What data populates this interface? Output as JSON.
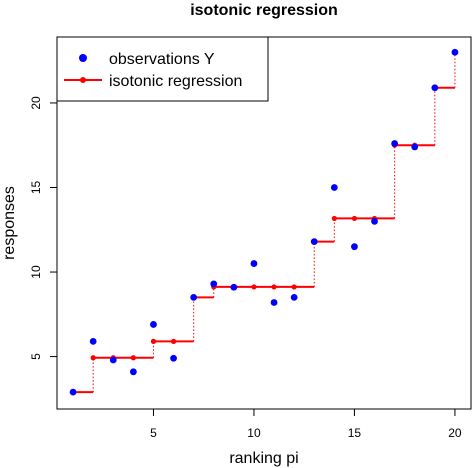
{
  "chart_data": {
    "type": "scatter",
    "title": "isotonic regression",
    "xlabel": "ranking pi",
    "ylabel": "responses",
    "xlim": [
      0.2,
      20.8
    ],
    "ylim": [
      1.9,
      23.9
    ],
    "x_ticks": [
      5,
      10,
      15,
      20
    ],
    "y_ticks": [
      5,
      10,
      15,
      20
    ],
    "x_tick_labels": [
      "5",
      "10",
      "15",
      "20"
    ],
    "y_tick_labels": [
      "5",
      "10",
      "15",
      "20"
    ],
    "grid": false,
    "legend": {
      "position": "top-left",
      "entries": [
        "observations Y",
        "isotonic regression"
      ]
    },
    "x": [
      1,
      2,
      3,
      4,
      5,
      6,
      7,
      8,
      9,
      10,
      11,
      12,
      13,
      14,
      15,
      16,
      17,
      18,
      19,
      20
    ],
    "series": [
      {
        "name": "observations Y",
        "style": "points",
        "color": "#0000ff",
        "values": [
          2.9,
          5.9,
          4.8,
          4.1,
          6.9,
          4.9,
          8.5,
          9.3,
          9.1,
          10.5,
          8.2,
          8.5,
          11.8,
          15.0,
          11.5,
          13.0,
          17.6,
          17.4,
          20.9,
          23.0
        ]
      },
      {
        "name": "isotonic regression",
        "style": "step",
        "color": "#ff0000",
        "values": [
          2.9,
          4.93,
          4.93,
          4.93,
          5.9,
          5.9,
          8.5,
          9.12,
          9.12,
          9.12,
          9.12,
          9.12,
          11.8,
          13.17,
          13.17,
          13.17,
          17.5,
          17.5,
          20.9,
          23.0
        ]
      }
    ]
  }
}
